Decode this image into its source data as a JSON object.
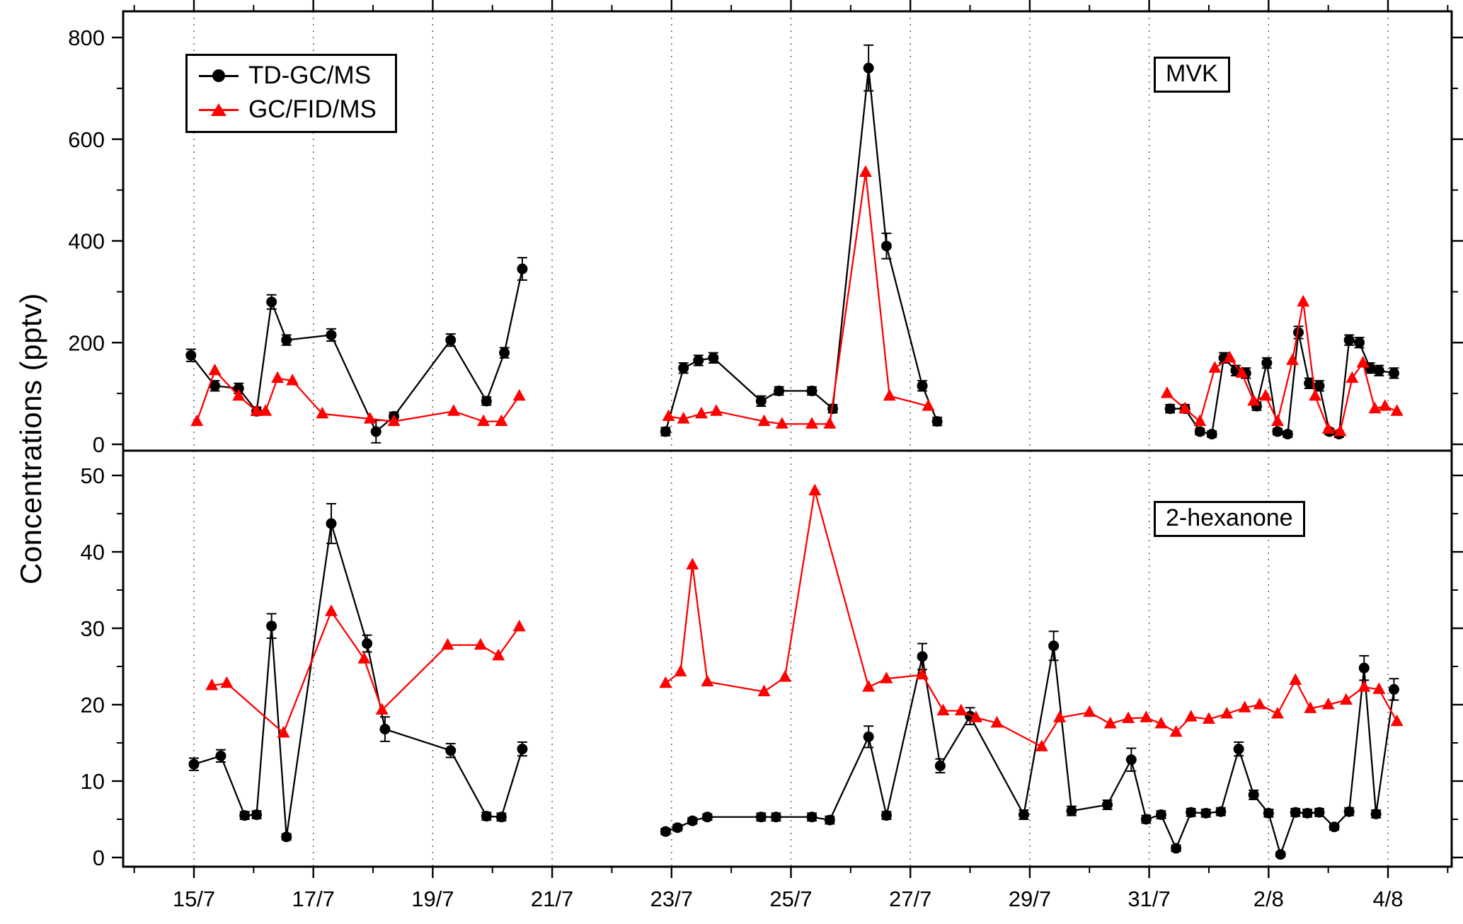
{
  "figure": {
    "ylabel": "Concentrations (pptv)",
    "legend": [
      {
        "label": "TD-GC/MS",
        "marker": "circle",
        "color": "#000000"
      },
      {
        "label": "GC/FID/MS",
        "marker": "triangle",
        "color": "#ff0000"
      }
    ]
  },
  "x_axis": {
    "tick_days": [
      0,
      2,
      4,
      6,
      8,
      10,
      12,
      14,
      16,
      18,
      20
    ],
    "tick_labels": [
      "15/7",
      "17/7",
      "19/7",
      "21/7",
      "23/7",
      "25/7",
      "27/7",
      "29/7",
      "31/7",
      "2/8",
      "4/8"
    ],
    "minor_tick_days": [
      -1,
      1,
      3,
      5,
      7,
      9,
      11,
      13,
      15,
      17,
      19,
      21
    ],
    "range_days": [
      -1.2,
      21.1
    ]
  },
  "chart_data": [
    {
      "type": "line",
      "title": "MVK",
      "ylabel": "Concentrations (pptv)",
      "ylim": [
        0,
        800
      ],
      "yticks": [
        0,
        200,
        400,
        600,
        800
      ],
      "yticks_minor": [
        100,
        300,
        500,
        700
      ],
      "grid": "vertical-dotted",
      "legend_position": "top-left",
      "series": [
        {
          "name": "TD-GC/MS",
          "color": "#000000",
          "marker": "circle",
          "points": [
            [
              -0.05,
              175,
              12
            ],
            [
              0.35,
              115,
              10
            ],
            [
              0.75,
              110,
              10
            ],
            [
              1.05,
              65,
              8
            ],
            [
              1.3,
              280,
              14
            ],
            [
              1.55,
              205,
              10
            ],
            [
              2.3,
              215,
              12
            ],
            [
              3.05,
              25,
              22
            ],
            [
              3.35,
              55,
              8
            ],
            [
              4.3,
              205,
              12
            ],
            [
              4.9,
              85,
              8
            ],
            [
              5.2,
              180,
              10
            ],
            [
              5.5,
              345,
              22
            ],
            [
              7.9,
              25,
              8
            ],
            [
              8.2,
              150,
              10
            ],
            [
              8.45,
              165,
              10
            ],
            [
              8.7,
              170,
              10
            ],
            [
              9.5,
              85,
              10
            ],
            [
              9.8,
              105,
              8
            ],
            [
              10.35,
              105,
              8
            ],
            [
              10.7,
              70,
              8
            ],
            [
              11.3,
              740,
              45
            ],
            [
              11.6,
              390,
              25
            ],
            [
              12.2,
              115,
              10
            ],
            [
              12.45,
              45,
              8
            ],
            [
              16.35,
              70,
              8
            ],
            [
              16.6,
              70,
              8
            ],
            [
              16.85,
              25,
              6
            ],
            [
              17.05,
              20,
              6
            ],
            [
              17.25,
              170,
              10
            ],
            [
              17.45,
              145,
              10
            ],
            [
              17.62,
              140,
              10
            ],
            [
              17.8,
              75,
              8
            ],
            [
              17.97,
              160,
              10
            ],
            [
              18.15,
              25,
              6
            ],
            [
              18.32,
              20,
              6
            ],
            [
              18.5,
              220,
              12
            ],
            [
              18.68,
              120,
              10
            ],
            [
              18.85,
              115,
              10
            ],
            [
              19.02,
              25,
              6
            ],
            [
              19.18,
              20,
              6
            ],
            [
              19.35,
              205,
              10
            ],
            [
              19.52,
              200,
              10
            ],
            [
              19.7,
              150,
              10
            ],
            [
              19.85,
              145,
              10
            ],
            [
              20.1,
              140,
              10
            ]
          ]
        },
        {
          "name": "GC/FID/MS",
          "color": "#ff0000",
          "marker": "triangle",
          "points": [
            [
              0.05,
              45
            ],
            [
              0.35,
              145
            ],
            [
              0.75,
              95
            ],
            [
              1.05,
              65
            ],
            [
              1.2,
              65
            ],
            [
              1.4,
              130
            ],
            [
              1.65,
              125
            ],
            [
              2.15,
              60
            ],
            [
              2.95,
              50
            ],
            [
              3.35,
              45
            ],
            [
              4.35,
              65
            ],
            [
              4.85,
              45
            ],
            [
              5.15,
              45
            ],
            [
              5.45,
              95
            ],
            [
              7.95,
              55
            ],
            [
              8.2,
              50
            ],
            [
              8.5,
              60
            ],
            [
              8.75,
              65
            ],
            [
              9.55,
              45
            ],
            [
              9.85,
              40
            ],
            [
              10.35,
              40
            ],
            [
              10.65,
              40
            ],
            [
              11.25,
              535
            ],
            [
              11.65,
              95
            ],
            [
              12.3,
              75
            ],
            [
              16.3,
              100
            ],
            [
              16.6,
              70
            ],
            [
              16.85,
              45
            ],
            [
              17.1,
              150
            ],
            [
              17.35,
              170
            ],
            [
              17.55,
              140
            ],
            [
              17.75,
              85
            ],
            [
              17.95,
              95
            ],
            [
              18.15,
              45
            ],
            [
              18.4,
              165
            ],
            [
              18.58,
              280
            ],
            [
              18.78,
              95
            ],
            [
              19.0,
              30
            ],
            [
              19.2,
              25
            ],
            [
              19.4,
              130
            ],
            [
              19.58,
              160
            ],
            [
              19.78,
              70
            ],
            [
              19.95,
              75
            ],
            [
              20.15,
              65
            ]
          ]
        }
      ]
    },
    {
      "type": "line",
      "title": "2-hexanone",
      "ylabel": "Concentrations (pptv)",
      "ylim": [
        0,
        50
      ],
      "yticks": [
        0,
        10,
        20,
        30,
        40,
        50
      ],
      "yticks_minor": [
        5,
        15,
        25,
        35,
        45
      ],
      "grid": "vertical-dotted",
      "series": [
        {
          "name": "TD-GC/MS",
          "color": "#000000",
          "marker": "circle",
          "points": [
            [
              0.0,
              12.2,
              0.8
            ],
            [
              0.45,
              13.3,
              0.8
            ],
            [
              0.85,
              5.5,
              0.5
            ],
            [
              1.05,
              5.6,
              0.5
            ],
            [
              1.3,
              30.3,
              1.6
            ],
            [
              1.55,
              2.7,
              0.4
            ],
            [
              2.3,
              43.7,
              2.6
            ],
            [
              2.9,
              28.0,
              1.1
            ],
            [
              3.2,
              16.8,
              1.6
            ],
            [
              4.3,
              14.0,
              0.9
            ],
            [
              4.9,
              5.4,
              0.5
            ],
            [
              5.15,
              5.3,
              0.5
            ],
            [
              5.5,
              14.2,
              0.9
            ],
            [
              7.9,
              3.4,
              0.4
            ],
            [
              8.1,
              3.9,
              0.4
            ],
            [
              8.35,
              4.8,
              0.4
            ],
            [
              8.6,
              5.3,
              0.4
            ],
            [
              9.5,
              5.3,
              0.5
            ],
            [
              9.75,
              5.3,
              0.5
            ],
            [
              10.35,
              5.3,
              0.5
            ],
            [
              10.65,
              4.9,
              0.5
            ],
            [
              11.3,
              15.8,
              1.4
            ],
            [
              11.6,
              5.5,
              0.5
            ],
            [
              12.2,
              26.3,
              1.7
            ],
            [
              12.5,
              12.0,
              0.9
            ],
            [
              13.0,
              18.5,
              1.1
            ],
            [
              13.9,
              5.6,
              0.6
            ],
            [
              14.4,
              27.7,
              1.9
            ],
            [
              14.7,
              6.1,
              0.6
            ],
            [
              15.3,
              6.9,
              0.6
            ],
            [
              15.7,
              12.8,
              1.5
            ],
            [
              15.95,
              5.0,
              0.5
            ],
            [
              16.2,
              5.6,
              0.5
            ],
            [
              16.45,
              1.2,
              0.4
            ],
            [
              16.7,
              5.9,
              0.5
            ],
            [
              16.95,
              5.8,
              0.5
            ],
            [
              17.2,
              6.0,
              0.5
            ],
            [
              17.5,
              14.2,
              0.9
            ],
            [
              17.75,
              8.2,
              0.6
            ],
            [
              18.0,
              5.8,
              0.5
            ],
            [
              18.2,
              0.4,
              0.3
            ],
            [
              18.45,
              5.9,
              0.5
            ],
            [
              18.65,
              5.8,
              0.5
            ],
            [
              18.85,
              5.9,
              0.5
            ],
            [
              19.1,
              4.0,
              0.4
            ],
            [
              19.35,
              6.0,
              0.5
            ],
            [
              19.6,
              24.8,
              1.6
            ],
            [
              19.8,
              5.7,
              0.5
            ],
            [
              20.1,
              22.0,
              1.4
            ]
          ]
        },
        {
          "name": "GC/FID/MS",
          "color": "#ff0000",
          "marker": "triangle",
          "points": [
            [
              0.3,
              22.5
            ],
            [
              0.55,
              22.8
            ],
            [
              1.5,
              16.3
            ],
            [
              2.3,
              32.2
            ],
            [
              2.85,
              26.0
            ],
            [
              3.15,
              19.3
            ],
            [
              4.25,
              27.8
            ],
            [
              4.8,
              27.8
            ],
            [
              5.1,
              26.4
            ],
            [
              5.45,
              30.2
            ],
            [
              7.9,
              22.8
            ],
            [
              8.15,
              24.3
            ],
            [
              8.35,
              38.3
            ],
            [
              8.6,
              23.0
            ],
            [
              9.55,
              21.7
            ],
            [
              9.9,
              23.6
            ],
            [
              10.4,
              48.0
            ],
            [
              11.3,
              22.3
            ],
            [
              11.6,
              23.4
            ],
            [
              12.2,
              23.9
            ],
            [
              12.55,
              19.2
            ],
            [
              12.85,
              19.2
            ],
            [
              13.1,
              18.3
            ],
            [
              13.45,
              17.6
            ],
            [
              14.2,
              14.5
            ],
            [
              14.5,
              18.3
            ],
            [
              15.0,
              19.0
            ],
            [
              15.35,
              17.5
            ],
            [
              15.65,
              18.2
            ],
            [
              15.95,
              18.3
            ],
            [
              16.2,
              17.5
            ],
            [
              16.45,
              16.4
            ],
            [
              16.7,
              18.4
            ],
            [
              17.0,
              18.1
            ],
            [
              17.3,
              18.8
            ],
            [
              17.6,
              19.6
            ],
            [
              17.85,
              20.0
            ],
            [
              18.15,
              18.8
            ],
            [
              18.45,
              23.2
            ],
            [
              18.7,
              19.5
            ],
            [
              19.0,
              20.0
            ],
            [
              19.3,
              20.6
            ],
            [
              19.6,
              22.3
            ],
            [
              19.85,
              22.0
            ],
            [
              20.15,
              17.8
            ]
          ]
        }
      ]
    }
  ]
}
